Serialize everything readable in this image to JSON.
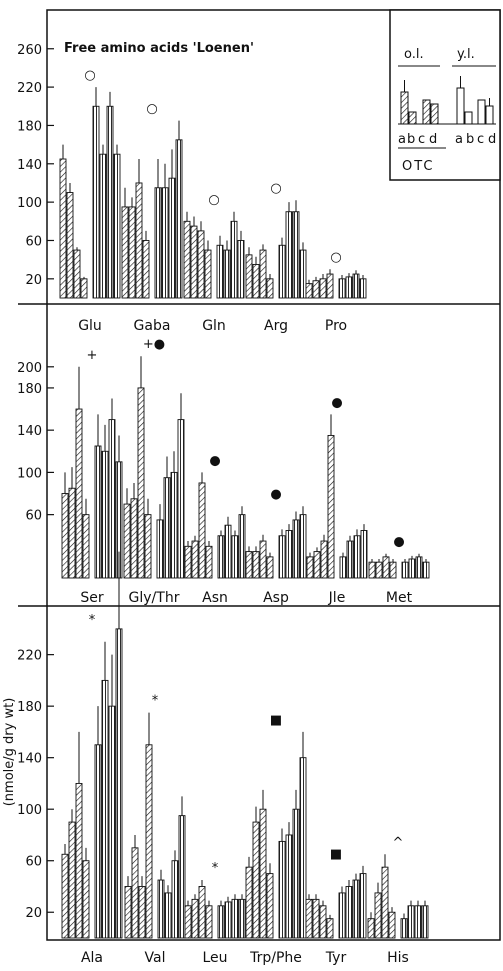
{
  "chart_data": {
    "type": "bar",
    "title": "Free amino acids   'Loenen'",
    "ylabel": "(nmole/g dry wt)",
    "legend": {
      "placement": "top-right",
      "group_labels": [
        "o.l.",
        "y.l."
      ],
      "bar_labels": [
        "a",
        "b",
        "c",
        "d",
        "a",
        "b",
        "c",
        "d"
      ],
      "treatment_label": "OTC"
    },
    "bar_order": [
      "o.l. a",
      "o.l. b",
      "o.l. c",
      "o.l. d",
      "y.l. a",
      "y.l. b",
      "y.l. c",
      "y.l. d"
    ],
    "panels": [
      {
        "ylim": [
          0,
          290
        ],
        "yticks": [
          20,
          60,
          100,
          140,
          180,
          220,
          260
        ],
        "ytick_labels": [
          "20",
          "60",
          "100",
          "140",
          "180",
          "220",
          "260"
        ],
        "categories": [
          {
            "label": "Glu",
            "marker": "○",
            "values": [
              145,
              110,
              50,
              20,
              200,
              150,
              200,
              150
            ],
            "black": [
              0,
              0,
              0,
              0,
              0,
              0,
              0,
              0
            ],
            "errors": [
              15,
              10,
              3,
              2,
              20,
              10,
              15,
              10
            ]
          },
          {
            "label": "Gaba",
            "marker": "○",
            "values": [
              95,
              95,
              120,
              60,
              115,
              115,
              125,
              165
            ],
            "black": [
              0,
              0,
              0,
              0,
              0,
              0,
              0,
              0
            ],
            "errors": [
              20,
              10,
              25,
              10,
              30,
              25,
              30,
              20
            ]
          },
          {
            "label": "Gln",
            "marker": "○",
            "values": [
              80,
              75,
              70,
              50,
              55,
              50,
              80,
              60
            ],
            "black": [
              0,
              0,
              0,
              0,
              0,
              0,
              0,
              0
            ],
            "errors": [
              10,
              10,
              10,
              10,
              10,
              10,
              10,
              10
            ]
          },
          {
            "label": "Arg",
            "marker": "○",
            "values": [
              45,
              35,
              50,
              20,
              55,
              90,
              90,
              50
            ],
            "black": [
              0,
              0,
              0,
              0,
              0,
              0,
              0,
              0
            ],
            "errors": [
              8,
              8,
              6,
              5,
              8,
              10,
              12,
              8
            ]
          },
          {
            "label": "Pro",
            "marker": "○",
            "values": [
              15,
              18,
              20,
              25,
              20,
              22,
              25,
              20
            ],
            "black": [
              0,
              0,
              0,
              0,
              0,
              0,
              0,
              0
            ],
            "errors": [
              4,
              4,
              5,
              5,
              4,
              4,
              4,
              4
            ]
          }
        ]
      },
      {
        "ylim": [
          0,
          250
        ],
        "yticks": [
          60,
          100,
          140,
          180,
          200
        ],
        "ytick_labels": [
          "60",
          "100",
          "140",
          "180",
          "200"
        ],
        "categories": [
          {
            "label": "Ser",
            "marker": "+",
            "values": [
              80,
              85,
              160,
              60,
              125,
              120,
              150,
              110
            ],
            "black": [
              0,
              0,
              0,
              0,
              0,
              0,
              0,
              0
            ],
            "errors": [
              20,
              20,
              40,
              15,
              30,
              25,
              20,
              25
            ]
          },
          {
            "label": "Gly/Thr",
            "marker": "+●",
            "values": [
              70,
              75,
              180,
              60,
              55,
              95,
              100,
              150
            ],
            "black": [
              0,
              0,
              0,
              0,
              0,
              0,
              0,
              0
            ],
            "errors": [
              15,
              15,
              30,
              15,
              15,
              20,
              20,
              25
            ]
          },
          {
            "label": "Asn",
            "marker": "●",
            "values": [
              30,
              35,
              90,
              30,
              40,
              50,
              40,
              60
            ],
            "black": [
              0,
              0,
              0,
              0,
              0,
              0,
              0,
              0
            ],
            "errors": [
              5,
              5,
              10,
              5,
              5,
              8,
              5,
              8
            ]
          },
          {
            "label": "Asp",
            "marker": "●",
            "values": [
              25,
              25,
              35,
              20,
              40,
              45,
              55,
              60
            ],
            "black": [
              0,
              0,
              0,
              0,
              0,
              0,
              0,
              0
            ],
            "errors": [
              5,
              5,
              6,
              4,
              6,
              6,
              8,
              8
            ]
          },
          {
            "label": "Jle",
            "marker": "●",
            "values": [
              20,
              25,
              35,
              135,
              20,
              35,
              40,
              45
            ],
            "black": [
              0,
              0,
              0,
              0,
              0,
              0,
              0,
              0
            ],
            "errors": [
              4,
              4,
              6,
              20,
              4,
              5,
              6,
              6
            ]
          },
          {
            "label": "Met",
            "marker": "●",
            "values": [
              15,
              15,
              20,
              15,
              15,
              18,
              20,
              15
            ],
            "black": [
              0,
              0,
              0,
              0,
              0,
              0,
              0,
              0
            ],
            "errors": [
              3,
              3,
              3,
              3,
              3,
              3,
              3,
              3
            ]
          }
        ]
      },
      {
        "ylim": [
          0,
          250
        ],
        "yticks": [
          20,
          60,
          100,
          140,
          180,
          220
        ],
        "ytick_labels": [
          "20",
          "60",
          "100",
          "140",
          "180",
          "220"
        ],
        "categories": [
          {
            "label": "Ala",
            "marker": "*",
            "values": [
              65,
              90,
              120,
              60,
              150,
              200,
              180,
              240
            ],
            "black": [
              0,
              0,
              0,
              0,
              0,
              0,
              0,
              0
            ],
            "errors": [
              8,
              10,
              40,
              10,
              30,
              30,
              40,
              60
            ]
          },
          {
            "label": "Val",
            "marker": "*",
            "values": [
              40,
              70,
              40,
              150,
              45,
              35,
              60,
              95
            ],
            "black": [
              0,
              0,
              0,
              0,
              0,
              0,
              0,
              0
            ],
            "errors": [
              8,
              10,
              8,
              25,
              8,
              6,
              8,
              15
            ]
          },
          {
            "label": "Leu",
            "marker": "*",
            "values": [
              25,
              30,
              40,
              25,
              25,
              28,
              30,
              30
            ],
            "black": [
              0,
              0,
              0,
              0,
              0,
              0,
              0,
              0
            ],
            "errors": [
              4,
              4,
              5,
              4,
              4,
              4,
              4,
              4
            ]
          },
          {
            "label": "Trp/Phe",
            "marker": "■",
            "values": [
              55,
              90,
              100,
              50,
              75,
              80,
              100,
              140
            ],
            "black": [
              0,
              0,
              0,
              0,
              0,
              0,
              0,
              0
            ],
            "errors": [
              8,
              12,
              15,
              8,
              10,
              10,
              15,
              20
            ]
          },
          {
            "label": "Tyr",
            "marker": "■",
            "values": [
              30,
              30,
              25,
              15,
              35,
              40,
              45,
              50
            ],
            "black": [
              0,
              0,
              0,
              0,
              0,
              0,
              0,
              0
            ],
            "errors": [
              4,
              4,
              4,
              3,
              5,
              5,
              5,
              6
            ]
          },
          {
            "label": "His",
            "marker": "^",
            "values": [
              15,
              35,
              55,
              20,
              15,
              25,
              25,
              25
            ],
            "black": [
              0,
              0,
              0,
              0,
              0,
              0,
              0,
              0
            ],
            "errors": [
              5,
              8,
              10,
              4,
              4,
              4,
              4,
              4
            ]
          }
        ]
      }
    ]
  }
}
